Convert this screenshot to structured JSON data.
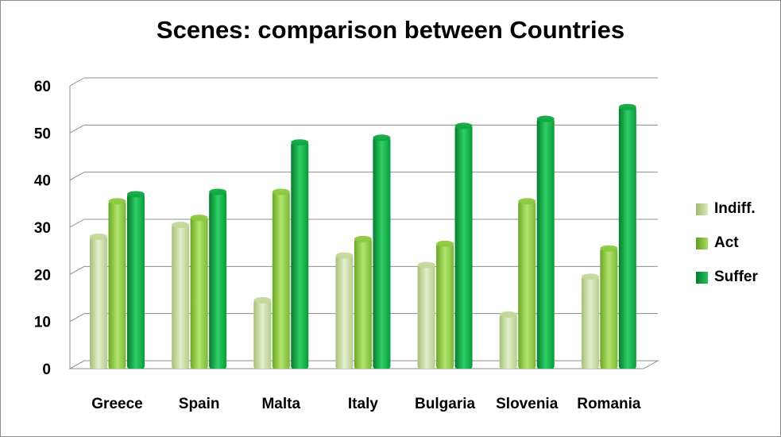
{
  "chart_data": {
    "type": "bar",
    "title": "Scenes: comparison between Countries",
    "xlabel": "",
    "ylabel": "",
    "ylim": [
      0,
      60
    ],
    "yticks": [
      0,
      10,
      20,
      30,
      40,
      50,
      60
    ],
    "grid": true,
    "legend_position": "right",
    "categories": [
      "Greece",
      "Spain",
      "Malta",
      "Italy",
      "Bulgaria",
      "Slovenia",
      "Romania"
    ],
    "series": [
      {
        "name": "Indiff.",
        "color": "#c3d99a",
        "values": [
          28,
          30.5,
          14.5,
          24,
          22,
          11.5,
          19.5
        ]
      },
      {
        "name": "Act",
        "color": "#8bc93f",
        "values": [
          35.5,
          32,
          37.5,
          27.5,
          26.5,
          35.5,
          25.5
        ]
      },
      {
        "name": "Suffer",
        "color": "#0fa842",
        "values": [
          37,
          37.5,
          48,
          49,
          51.5,
          53,
          55.5
        ]
      }
    ]
  }
}
